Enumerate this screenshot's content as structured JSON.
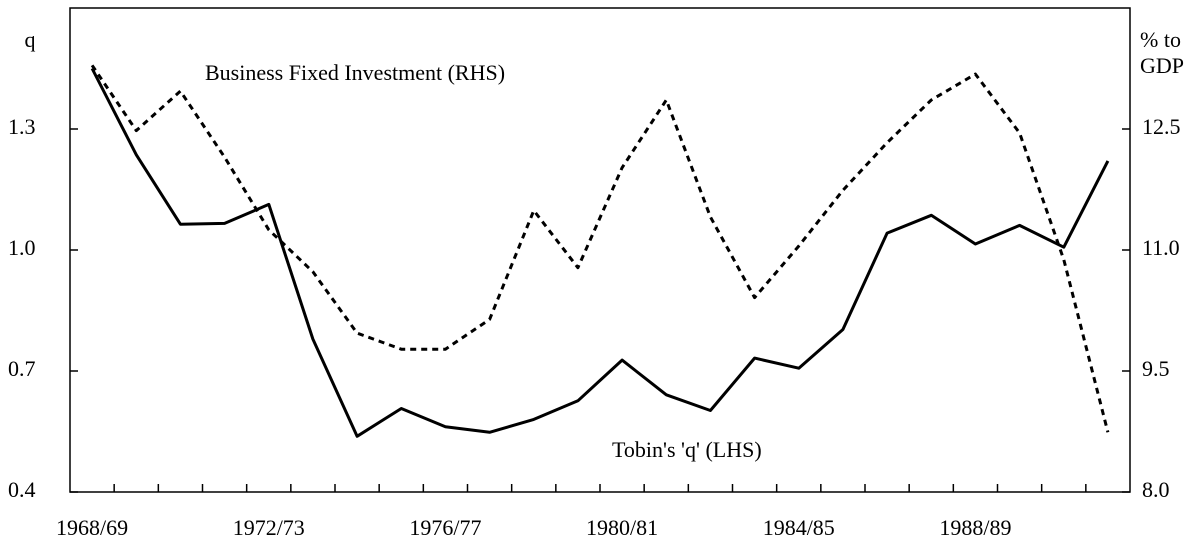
{
  "chart_data": {
    "type": "line",
    "y_label": "q",
    "y2_label": [
      "% to",
      "GDP"
    ],
    "annotations": [
      "Business Fixed Investment (RHS)",
      "Tobin's 'q' (LHS)"
    ],
    "categories": [
      "1968/69",
      null,
      null,
      null,
      "1972/73",
      null,
      null,
      null,
      "1976/77",
      null,
      null,
      null,
      "1980/81",
      null,
      null,
      null,
      "1984/85",
      null,
      null,
      null,
      "1988/89",
      null,
      null,
      null
    ],
    "series": [
      {
        "name": "Tobin's 'q' (LHS)",
        "color": "#000000",
        "line_style": "solid",
        "axis": "y",
        "values": [
          1.45,
          1.236,
          1.064,
          1.066,
          1.113,
          0.779,
          0.538,
          0.607,
          0.562,
          0.548,
          0.58,
          0.626,
          0.727,
          0.641,
          0.602,
          0.732,
          0.707,
          0.803,
          1.042,
          1.086,
          1.015,
          1.061,
          1.007,
          1.221
        ]
      },
      {
        "name": "Business Fixed Investment (RHS)",
        "color": "#000000",
        "line_style": "dotted",
        "axis": "y2",
        "values": [
          13.29,
          12.48,
          12.97,
          12.15,
          11.25,
          10.73,
          9.97,
          9.77,
          9.77,
          10.14,
          11.49,
          10.78,
          12.02,
          12.86,
          11.41,
          10.41,
          11.05,
          11.74,
          12.33,
          12.86,
          13.18,
          12.45,
          10.88,
          8.74
        ]
      }
    ],
    "ylim": [
      0.4,
      1.6
    ],
    "yticks": [
      0.4,
      0.7,
      {
        "value": 1,
        "label": "1.0"
      },
      1.3
    ],
    "y2lim": [
      8,
      14
    ],
    "y2ticks": [
      {
        "value": 8,
        "label": "8.0"
      },
      9.5,
      {
        "value": 11,
        "label": "11.0"
      },
      12.5
    ],
    "grid": false
  }
}
